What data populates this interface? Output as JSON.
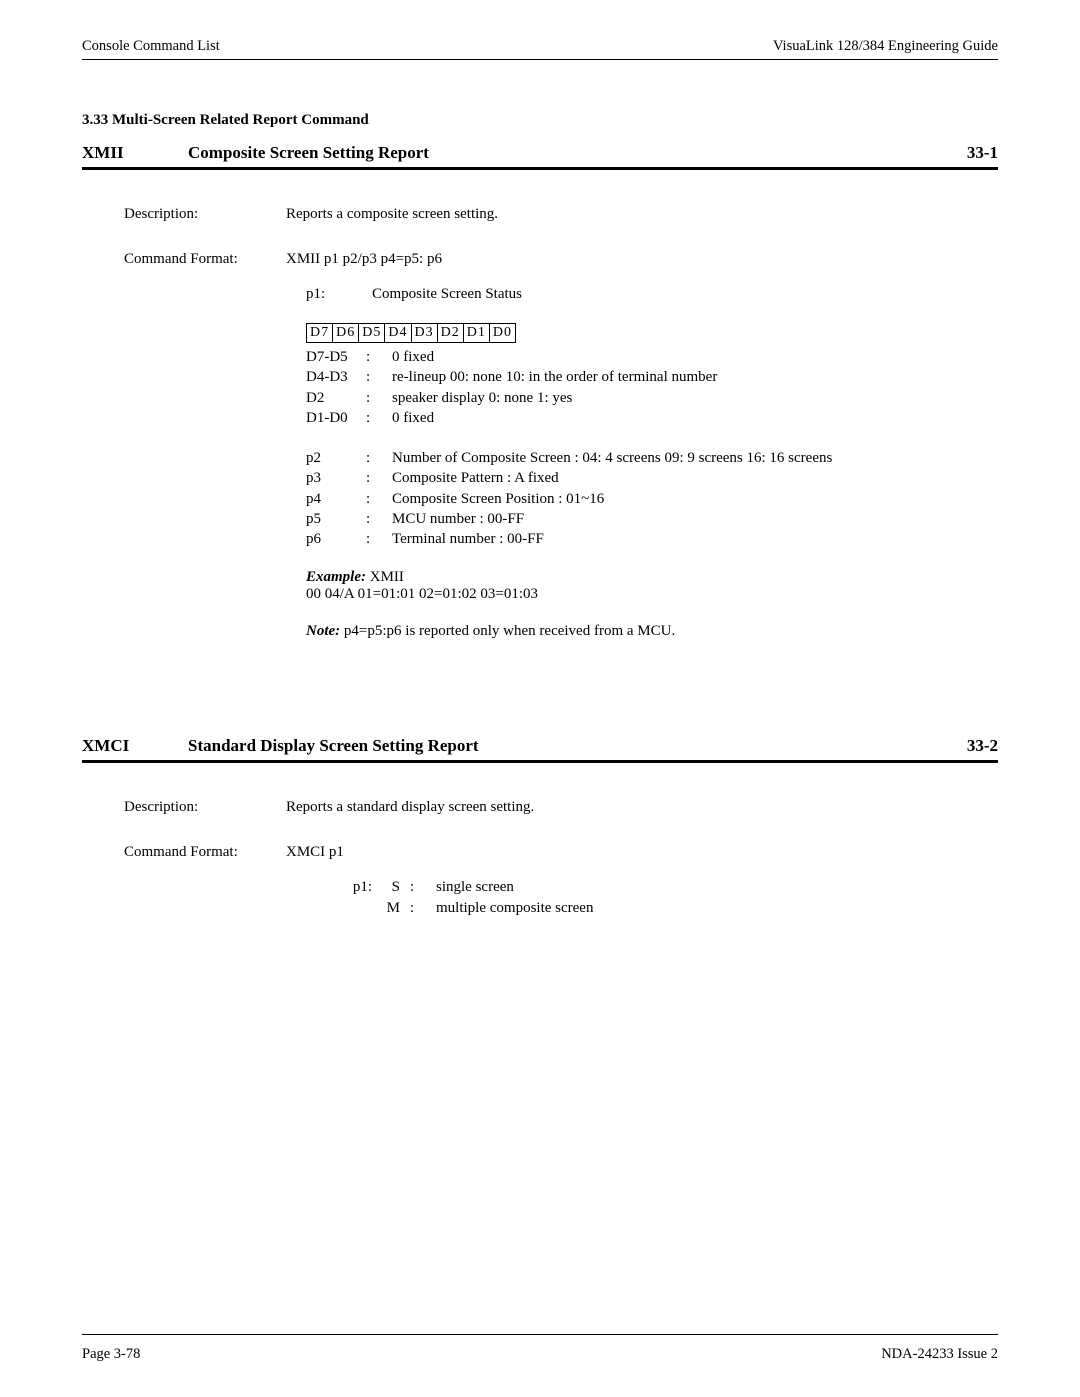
{
  "header": {
    "left": "Console Command List",
    "right": "VisuaLink 128/384 Engineering Guide"
  },
  "section_heading": "3.33  Multi-Screen Related Report Command",
  "cmd1": {
    "code": "XMII",
    "title": "Composite Screen Setting Report",
    "ref": "33-1",
    "desc_label": "Description:",
    "desc_value": "Reports a composite screen setting.",
    "fmt_label": "Command Format:",
    "fmt_value": "XMII p1 p2/p3 p4=p5: p6",
    "p1_key": "p1:",
    "p1_desc": "Composite Screen Status",
    "bits": [
      "D7",
      "D6",
      "D5",
      "D4",
      "D3",
      "D2",
      "D1",
      "D0"
    ],
    "bitdefs": [
      {
        "k": "D7-D5",
        "c": ":",
        "v": "0 fixed"
      },
      {
        "k": "D4-D3",
        "c": ":",
        "v": "re-lineup 00: none 10: in the order of terminal number"
      },
      {
        "k": "D2",
        "c": ":",
        "v": "speaker display 0: none 1: yes"
      },
      {
        "k": "D1-D0",
        "c": ":",
        "v": "0 fixed"
      }
    ],
    "params": [
      {
        "k": "p2",
        "c": ":",
        "v": "Number of Composite Screen : 04: 4 screens 09: 9 screens 16: 16 screens"
      },
      {
        "k": "p3",
        "c": ":",
        "v": "Composite Pattern : A fixed"
      },
      {
        "k": "p4",
        "c": ":",
        "v": "Composite Screen Position : 01~16"
      },
      {
        "k": "p5",
        "c": ":",
        "v": "MCU number : 00-FF"
      },
      {
        "k": "p6",
        "c": ":",
        "v": "Terminal number : 00-FF"
      }
    ],
    "example_label": "Example:",
    "example_cmd": " XMII",
    "example_line2": "00 04/A 01=01:01 02=01:02 03=01:03",
    "note_label": "Note:",
    "note_text": "  p4=p5:p6 is reported only when received from a MCU."
  },
  "cmd2": {
    "code": "XMCI",
    "title": "Standard Display Screen Setting Report",
    "ref": "33-2",
    "desc_label": "Description:",
    "desc_value": "Reports a standard display screen setting.",
    "fmt_label": "Command Format:",
    "fmt_value": "XMCI p1",
    "p1_lead": "p1:",
    "opts": [
      {
        "code": "S",
        "c": ":",
        "v": "single screen"
      },
      {
        "code": "M",
        "c": ":",
        "v": "multiple composite screen"
      }
    ]
  },
  "footer": {
    "left": "Page 3-78",
    "right": "NDA-24233 Issue 2"
  }
}
